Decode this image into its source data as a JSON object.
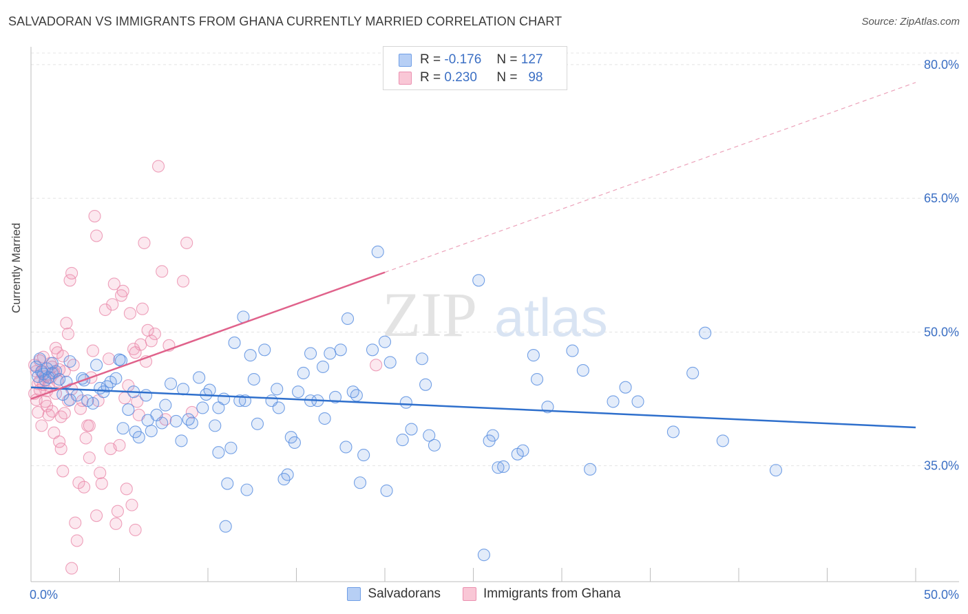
{
  "title": "SALVADORAN VS IMMIGRANTS FROM GHANA CURRENTLY MARRIED CORRELATION CHART",
  "source": "Source: ZipAtlas.com",
  "watermark": {
    "zip": "ZIP",
    "atlas": "atlas"
  },
  "legend_top": [
    {
      "r_label": "R =",
      "r_value": "-0.176",
      "n_label": "N =",
      "n_value": "127",
      "fill": "#b7cff5",
      "stroke": "#6f9ee6"
    },
    {
      "r_label": "R =",
      "r_value": "0.230",
      "n_label": "N =",
      "n_value": "98",
      "fill": "#f9c7d6",
      "stroke": "#eb8fb0"
    }
  ],
  "colors": {
    "blue": "#5b8fe0",
    "pink": "#ea89aa",
    "blue_line": "#2e6fcc",
    "pink_line": "#e0628b",
    "tick_text": "#3b6fc4"
  },
  "chart_data": {
    "type": "scatter",
    "title": "SALVADORAN VS IMMIGRANTS FROM GHANA CURRENTLY MARRIED CORRELATION CHART",
    "xlabel": "",
    "ylabel": "Currently Married",
    "xlim": [
      0,
      50
    ],
    "ylim": [
      22,
      82
    ],
    "x_tick_labels": [
      "0.0%",
      "50.0%"
    ],
    "y_ticks": [
      35,
      50,
      65,
      80
    ],
    "y_tick_labels": [
      "35.0%",
      "50.0%",
      "65.0%",
      "80.0%"
    ],
    "grid": true,
    "legend": "bottom-center",
    "series": [
      {
        "name": "Salvadorans",
        "color": "#5b8fe0",
        "trend": {
          "x": [
            0,
            50
          ],
          "y": [
            43.8,
            39.3
          ]
        },
        "points": [
          [
            0.3,
            46.1
          ],
          [
            0.4,
            45.0
          ],
          [
            0.5,
            47.0
          ],
          [
            0.6,
            45.6
          ],
          [
            0.8,
            44.6
          ],
          [
            1.0,
            44.9
          ],
          [
            1.2,
            45.4
          ],
          [
            1.4,
            45.6
          ],
          [
            1.6,
            44.7
          ],
          [
            1.8,
            43.0
          ],
          [
            2.0,
            44.4
          ],
          [
            2.2,
            42.4
          ],
          [
            2.6,
            42.9
          ],
          [
            2.9,
            44.8
          ],
          [
            3.2,
            42.3
          ],
          [
            3.5,
            42.0
          ],
          [
            3.7,
            46.3
          ],
          [
            3.9,
            43.7
          ],
          [
            4.1,
            43.3
          ],
          [
            4.3,
            43.9
          ],
          [
            4.5,
            44.4
          ],
          [
            4.8,
            44.8
          ],
          [
            5.0,
            46.9
          ],
          [
            5.1,
            46.8
          ],
          [
            5.2,
            39.2
          ],
          [
            5.5,
            41.3
          ],
          [
            5.8,
            43.3
          ],
          [
            6.1,
            38.2
          ],
          [
            6.5,
            42.9
          ],
          [
            6.6,
            40.1
          ],
          [
            6.8,
            38.9
          ],
          [
            7.1,
            40.7
          ],
          [
            7.4,
            39.8
          ],
          [
            7.6,
            41.8
          ],
          [
            7.9,
            44.2
          ],
          [
            8.2,
            40.0
          ],
          [
            8.5,
            37.8
          ],
          [
            8.6,
            43.6
          ],
          [
            8.9,
            40.2
          ],
          [
            9.1,
            39.8
          ],
          [
            9.5,
            44.9
          ],
          [
            9.7,
            41.5
          ],
          [
            9.9,
            43.0
          ],
          [
            10.1,
            43.5
          ],
          [
            10.4,
            39.5
          ],
          [
            10.6,
            36.5
          ],
          [
            10.9,
            42.5
          ],
          [
            11.1,
            33.0
          ],
          [
            11.3,
            37.0
          ],
          [
            11.5,
            48.8
          ],
          [
            11.8,
            42.3
          ],
          [
            12.0,
            51.7
          ],
          [
            12.2,
            32.3
          ],
          [
            12.4,
            47.4
          ],
          [
            12.6,
            44.7
          ],
          [
            12.8,
            39.7
          ],
          [
            13.2,
            48.0
          ],
          [
            13.6,
            42.3
          ],
          [
            14.0,
            41.5
          ],
          [
            14.3,
            33.5
          ],
          [
            14.5,
            34.0
          ],
          [
            14.7,
            38.2
          ],
          [
            14.9,
            37.6
          ],
          [
            15.1,
            43.3
          ],
          [
            15.4,
            45.4
          ],
          [
            15.8,
            47.6
          ],
          [
            16.2,
            42.3
          ],
          [
            16.5,
            46.1
          ],
          [
            16.9,
            47.6
          ],
          [
            17.2,
            42.7
          ],
          [
            17.5,
            48.0
          ],
          [
            17.8,
            37.1
          ],
          [
            17.9,
            51.5
          ],
          [
            18.2,
            43.3
          ],
          [
            18.4,
            42.9
          ],
          [
            18.6,
            33.1
          ],
          [
            18.8,
            36.2
          ],
          [
            19.3,
            48.0
          ],
          [
            20.0,
            48.9
          ],
          [
            20.1,
            32.2
          ],
          [
            20.3,
            46.6
          ],
          [
            21.0,
            37.9
          ],
          [
            21.2,
            42.1
          ],
          [
            21.5,
            39.1
          ],
          [
            22.1,
            47.0
          ],
          [
            22.3,
            44.1
          ],
          [
            22.5,
            38.4
          ],
          [
            22.8,
            37.3
          ],
          [
            25.3,
            55.8
          ],
          [
            25.6,
            25.0
          ],
          [
            25.9,
            37.8
          ],
          [
            26.1,
            38.4
          ],
          [
            26.4,
            34.8
          ],
          [
            26.7,
            34.9
          ],
          [
            27.5,
            36.3
          ],
          [
            27.8,
            36.7
          ],
          [
            28.4,
            47.4
          ],
          [
            28.6,
            44.7
          ],
          [
            29.2,
            41.6
          ],
          [
            30.6,
            47.9
          ],
          [
            31.2,
            45.7
          ],
          [
            31.6,
            34.6
          ],
          [
            32.9,
            42.2
          ],
          [
            33.6,
            43.8
          ],
          [
            34.3,
            42.2
          ],
          [
            36.3,
            38.8
          ],
          [
            37.4,
            45.4
          ],
          [
            38.1,
            49.9
          ],
          [
            39.1,
            37.8
          ],
          [
            42.1,
            34.5
          ],
          [
            5.9,
            38.8
          ],
          [
            10.6,
            41.5
          ],
          [
            12.1,
            42.3
          ],
          [
            13.9,
            43.6
          ],
          [
            15.8,
            42.3
          ],
          [
            16.6,
            40.3
          ],
          [
            3.0,
            44.6
          ],
          [
            2.2,
            46.7
          ],
          [
            1.2,
            46.5
          ],
          [
            11.0,
            28.2
          ],
          [
            19.6,
            59.0
          ],
          [
            0.7,
            45.3
          ],
          [
            0.9,
            45.9
          ]
        ]
      },
      {
        "name": "Immigrants from Ghana",
        "color": "#ea89aa",
        "trend": {
          "x": [
            0,
            20
          ],
          "y": [
            42.5,
            56.7
          ]
        },
        "trend_extension": {
          "x": [
            20,
            50
          ],
          "y": [
            56.7,
            78
          ]
        },
        "points": [
          [
            0.2,
            43.1
          ],
          [
            0.3,
            42.4
          ],
          [
            0.4,
            44.2
          ],
          [
            0.5,
            44.5
          ],
          [
            0.6,
            45.5
          ],
          [
            0.7,
            47.2
          ],
          [
            0.8,
            45.0
          ],
          [
            0.9,
            41.7
          ],
          [
            1.0,
            40.7
          ],
          [
            1.1,
            46.5
          ],
          [
            1.2,
            41.1
          ],
          [
            1.3,
            38.7
          ],
          [
            1.4,
            48.2
          ],
          [
            1.5,
            47.7
          ],
          [
            1.6,
            37.7
          ],
          [
            1.7,
            36.9
          ],
          [
            1.8,
            34.4
          ],
          [
            1.9,
            45.6
          ],
          [
            2.0,
            51.0
          ],
          [
            2.1,
            49.8
          ],
          [
            2.2,
            55.8
          ],
          [
            2.3,
            56.6
          ],
          [
            2.4,
            46.3
          ],
          [
            2.5,
            28.6
          ],
          [
            2.6,
            26.6
          ],
          [
            2.7,
            33.1
          ],
          [
            2.8,
            41.4
          ],
          [
            2.9,
            42.3
          ],
          [
            3.0,
            32.6
          ],
          [
            3.1,
            38.1
          ],
          [
            3.2,
            39.5
          ],
          [
            3.3,
            39.5
          ],
          [
            3.4,
            44.9
          ],
          [
            3.5,
            47.9
          ],
          [
            3.6,
            63.0
          ],
          [
            3.7,
            60.8
          ],
          [
            3.8,
            42.3
          ],
          [
            3.9,
            34.2
          ],
          [
            4.0,
            33.0
          ],
          [
            4.2,
            52.5
          ],
          [
            4.4,
            47.0
          ],
          [
            4.5,
            36.9
          ],
          [
            4.6,
            53.1
          ],
          [
            4.7,
            55.4
          ],
          [
            4.8,
            28.5
          ],
          [
            4.9,
            29.9
          ],
          [
            5.0,
            37.3
          ],
          [
            5.1,
            54.1
          ],
          [
            5.2,
            54.6
          ],
          [
            5.3,
            42.6
          ],
          [
            5.4,
            32.4
          ],
          [
            5.5,
            44.0
          ],
          [
            5.6,
            52.1
          ],
          [
            5.7,
            30.6
          ],
          [
            5.8,
            48.1
          ],
          [
            5.9,
            47.7
          ],
          [
            6.0,
            42.2
          ],
          [
            6.1,
            40.7
          ],
          [
            6.2,
            48.6
          ],
          [
            6.3,
            52.6
          ],
          [
            6.4,
            60.0
          ],
          [
            6.5,
            46.7
          ],
          [
            6.6,
            50.2
          ],
          [
            6.8,
            49.0
          ],
          [
            7.0,
            49.8
          ],
          [
            7.2,
            68.6
          ],
          [
            7.4,
            56.8
          ],
          [
            7.6,
            40.2
          ],
          [
            7.8,
            48.5
          ],
          [
            8.6,
            55.7
          ],
          [
            8.8,
            60.0
          ],
          [
            0.3,
            45.6
          ],
          [
            0.5,
            46.8
          ],
          [
            0.7,
            44.1
          ],
          [
            0.9,
            43.4
          ],
          [
            1.1,
            44.9
          ],
          [
            1.3,
            45.4
          ],
          [
            1.5,
            44.5
          ],
          [
            1.7,
            40.5
          ],
          [
            1.9,
            40.9
          ],
          [
            2.1,
            42.3
          ],
          [
            2.3,
            43.6
          ],
          [
            0.4,
            41.0
          ],
          [
            0.6,
            39.5
          ],
          [
            0.8,
            42.2
          ],
          [
            1.0,
            44.0
          ],
          [
            1.2,
            46.1
          ],
          [
            1.4,
            43.1
          ],
          [
            1.6,
            45.8
          ],
          [
            3.3,
            35.9
          ],
          [
            3.7,
            29.4
          ],
          [
            2.3,
            23.5
          ],
          [
            9.1,
            41.0
          ],
          [
            19.5,
            46.3
          ],
          [
            5.9,
            27.8
          ],
          [
            0.2,
            46.3
          ],
          [
            0.5,
            43.5
          ],
          [
            1.8,
            47.3
          ]
        ]
      }
    ]
  }
}
